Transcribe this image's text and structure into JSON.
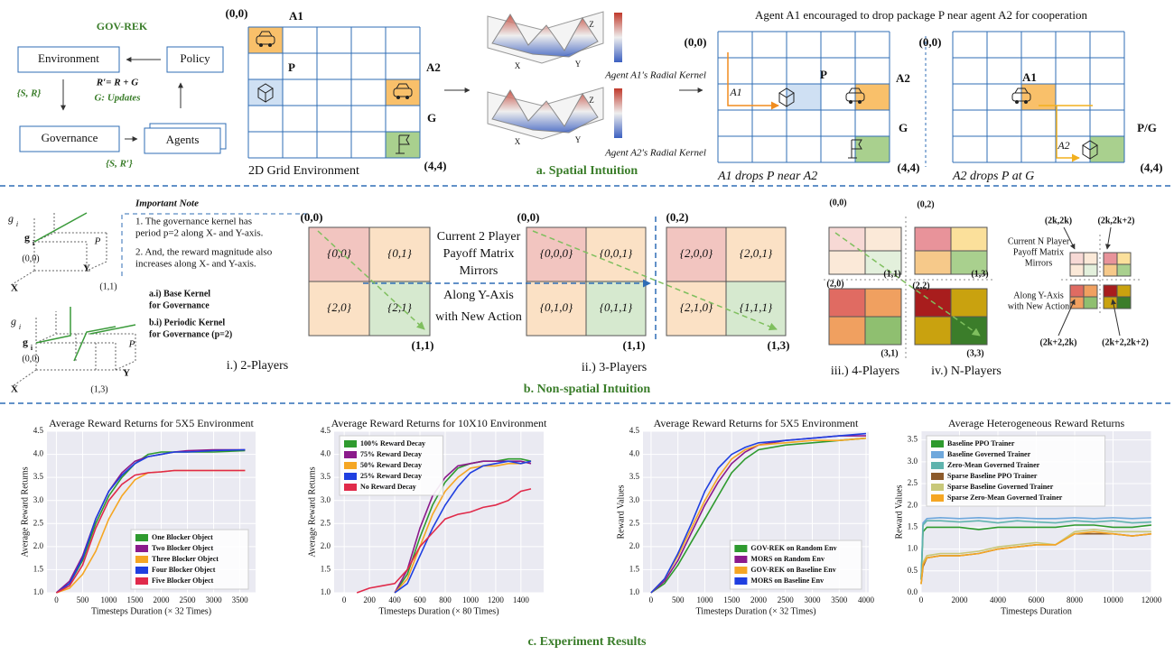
{
  "gov_rek": {
    "title": "GOV-REK",
    "environment": "Environment",
    "policy": "Policy",
    "governance": "Governance",
    "agents": "Agents",
    "state_reward": "{S, R}",
    "reward_formula": "R′= R + G",
    "updates": "G: Updates",
    "state_reward_prime": "{S, R′}"
  },
  "grid_env": {
    "origin": "(0,0)",
    "a1": "A1",
    "p": "P",
    "a2": "A2",
    "g": "G",
    "corner": "(4,4)",
    "caption": "2D Grid Environment"
  },
  "kernels": {
    "a1_label": "Agent A1's Radial Kernel",
    "a2_label": "Agent A2's Radial Kernel",
    "axis_z": "Z",
    "axis_x": "X",
    "axis_y": "Y"
  },
  "spatial": {
    "heading": "Agent A1 encouraged to drop package P near agent A2 for cooperation",
    "grid1": {
      "origin": "(0,0)",
      "path_label": "A1",
      "p": "P",
      "a2": "A2",
      "g": "G",
      "corner": "(4,4)",
      "caption": "A1 drops P near A2"
    },
    "grid2": {
      "origin": "(0,0)",
      "a1": "A1",
      "pg": "P/G",
      "path_label": "A2",
      "corner": "(4,4)",
      "caption": "A2 drops P at G"
    },
    "caption": "a. Spatial Intuition"
  },
  "non_spatial": {
    "kernel_labels": {
      "g": "g",
      "i": "i",
      "p": "P",
      "origin": "(0,0)",
      "x": "X",
      "y": "Y",
      "end1": "(1,1)",
      "end2": "(1,3)"
    },
    "note_title": "Important Note",
    "note_1": [
      "1. The governance kernel has",
      "period p=2 along X- and Y-axis."
    ],
    "note_2": [
      "2. And, the reward magnitude also",
      "increases along X- and Y-axis."
    ],
    "base_kernel": [
      "a.i) Base Kernel",
      "for Governance"
    ],
    "periodic_kernel": [
      "b.i) Periodic Kernel",
      "for Governance (p=2)"
    ],
    "two_players": {
      "cells": [
        "{0,0}",
        "{0,1}",
        "{2,0}",
        "{2,1}"
      ],
      "start": "(0,0)",
      "end": "(1,1)",
      "caption": "i.) 2-Players"
    },
    "mirror_text": [
      "Current 2 Player",
      "Payoff Matrix",
      "Mirrors"
    ],
    "along_text": [
      "Along Y-Axis",
      "with New Action"
    ],
    "three_players": {
      "left_cells": [
        "{0,0,0}",
        "{0,0,1}",
        "{0,1,0}",
        "{0,1,1}"
      ],
      "right_cells": [
        "{2,0,0}",
        "{2,0,1}",
        "{2,1,0}",
        "{1,1,1}"
      ],
      "labels": [
        "(0,0)",
        "(1,1)",
        "(0,2)",
        "(1,3)"
      ],
      "caption": "ii.) 3-Players"
    },
    "four_players": {
      "labels": [
        "(0,0)",
        "(0,2)",
        "(1,1)",
        "(1,3)",
        "(2,0)",
        "(2,2)",
        "(3,1)",
        "(3,3)"
      ],
      "caption": "iii.) 4-Players"
    },
    "n_players": {
      "labels": [
        "(2k,2k)",
        "(2k,2k+2)",
        "(2k+2,2k)",
        "(2k+2,2k+2)"
      ],
      "mirror_text": [
        "Current N Player",
        "Payoff Matrix",
        "Mirrors"
      ],
      "along_text": [
        "Along Y-Axis",
        "with New Action"
      ],
      "caption": "iv.) N-Players"
    },
    "caption": "b. Non-spatial Intuition"
  },
  "experiments_caption": "c. Experiment Results",
  "chart_data": [
    {
      "type": "line",
      "title": "Average Reward Returns for 5X5 Environment",
      "x_label": "Timesteps Duration (× 32 Times)",
      "y_label": "Average Reward Returns",
      "legend": "lower right",
      "grid": true,
      "xlim": [
        -180,
        3800
      ],
      "xticks": [
        0,
        500,
        1000,
        1500,
        2000,
        2500,
        3000,
        3500
      ],
      "ylim": [
        1.0,
        4.5
      ],
      "yticks": [
        {
          "value": 1.0,
          "label": "1.0"
        },
        {
          "value": 1.5,
          "label": "1.5"
        },
        {
          "value": 2.0,
          "label": "2.0"
        },
        {
          "value": 2.5,
          "label": "2.5"
        },
        {
          "value": 3.0,
          "label": "3.0"
        },
        {
          "value": 3.5,
          "label": "3.5"
        },
        {
          "value": 4.0,
          "label": "4.0"
        },
        {
          "value": 4.5,
          "label": "4.5"
        }
      ],
      "x": [
        0,
        250,
        500,
        750,
        1000,
        1250,
        1500,
        1750,
        2000,
        2250,
        2500,
        3000,
        3600
      ],
      "series": [
        {
          "name": "One Blocker Object",
          "color": "#2e9a2e",
          "values": [
            1.0,
            1.2,
            1.7,
            2.5,
            3.1,
            3.5,
            3.8,
            4.0,
            4.05,
            4.05,
            4.05,
            4.05,
            4.08
          ]
        },
        {
          "name": "Two Blocker Object",
          "color": "#8b1a8b",
          "values": [
            1.0,
            1.25,
            1.8,
            2.6,
            3.2,
            3.6,
            3.85,
            3.95,
            4.0,
            4.05,
            4.08,
            4.1,
            4.1
          ]
        },
        {
          "name": "Three Blocker Object",
          "color": "#f5a623",
          "values": [
            1.0,
            1.1,
            1.4,
            1.9,
            2.6,
            3.1,
            3.45,
            3.6,
            3.62,
            3.65,
            3.65,
            3.65,
            3.65
          ]
        },
        {
          "name": "Four Blocker Object",
          "color": "#1f3fe0",
          "values": [
            1.0,
            1.2,
            1.75,
            2.6,
            3.2,
            3.55,
            3.8,
            3.95,
            4.0,
            4.05,
            4.05,
            4.08,
            4.1
          ]
        },
        {
          "name": "Five Blocker Object",
          "color": "#e02a4a",
          "values": [
            1.0,
            1.15,
            1.6,
            2.4,
            3.0,
            3.35,
            3.55,
            3.6,
            3.62,
            3.65,
            3.65,
            3.65,
            3.65
          ]
        }
      ]
    },
    {
      "type": "line",
      "title": "Average Reward Returns for 10X10 Environment",
      "x_label": "Timesteps Duration (× 80 Times)",
      "y_label": "Average Reward Returns",
      "legend": "upper left",
      "grid": true,
      "xlim": [
        -80,
        1580
      ],
      "xticks": [
        0,
        200,
        400,
        600,
        800,
        1000,
        1200,
        1400
      ],
      "ylim": [
        1.0,
        4.5
      ],
      "yticks": [
        {
          "value": 1.0,
          "label": "1.0"
        },
        {
          "value": 1.5,
          "label": "1.5"
        },
        {
          "value": 2.0,
          "label": "2.0"
        },
        {
          "value": 2.5,
          "label": "2.5"
        },
        {
          "value": 3.0,
          "label": "3.0"
        },
        {
          "value": 3.5,
          "label": "3.5"
        },
        {
          "value": 4.0,
          "label": "4.0"
        },
        {
          "value": 4.5,
          "label": "4.5"
        }
      ],
      "x": [
        100,
        200,
        300,
        400,
        500,
        600,
        700,
        800,
        900,
        1000,
        1100,
        1200,
        1300,
        1400,
        1480
      ],
      "series": [
        {
          "name": "100% Reward Decay",
          "color": "#2e9a2e",
          "values": [
            null,
            null,
            null,
            1.0,
            1.4,
            2.2,
            2.9,
            3.4,
            3.7,
            3.8,
            3.85,
            3.85,
            3.9,
            3.9,
            3.85
          ]
        },
        {
          "name": "75% Reward Decay",
          "color": "#8b1a8b",
          "values": [
            null,
            null,
            null,
            1.0,
            1.5,
            2.4,
            3.1,
            3.5,
            3.75,
            3.8,
            3.85,
            3.85,
            3.85,
            3.85,
            3.8
          ]
        },
        {
          "name": "50% Reward Decay",
          "color": "#f5a623",
          "values": [
            null,
            null,
            null,
            1.0,
            1.3,
            2.0,
            2.7,
            3.2,
            3.5,
            3.7,
            3.75,
            3.75,
            3.8,
            3.8,
            3.85
          ]
        },
        {
          "name": "25% Reward Decay",
          "color": "#1f3fe0",
          "values": [
            null,
            null,
            null,
            1.0,
            1.2,
            1.8,
            2.4,
            2.9,
            3.3,
            3.6,
            3.75,
            3.8,
            3.85,
            3.8,
            3.85
          ]
        },
        {
          "name": "No Reward Decay",
          "color": "#e02a4a",
          "values": [
            1.0,
            1.1,
            1.15,
            1.2,
            1.5,
            2.0,
            2.3,
            2.6,
            2.7,
            2.75,
            2.85,
            2.9,
            3.0,
            3.2,
            3.25
          ]
        }
      ]
    },
    {
      "type": "line",
      "title": "Average Reward Returns for 5X5 Environment",
      "x_label": "Timesteps Duration (× 32 Times)",
      "y_label": "Reward Values",
      "legend": "lower right",
      "grid": true,
      "xlim": [
        -150,
        4050
      ],
      "xticks": [
        0,
        500,
        1000,
        1500,
        2000,
        2500,
        3000,
        3500,
        4000
      ],
      "ylim": [
        1.0,
        4.5
      ],
      "yticks": [
        {
          "value": 1.0,
          "label": "1.0"
        },
        {
          "value": 1.5,
          "label": "1.5"
        },
        {
          "value": 2.0,
          "label": "2.0"
        },
        {
          "value": 2.5,
          "label": "2.5"
        },
        {
          "value": 3.0,
          "label": "3.0"
        },
        {
          "value": 3.5,
          "label": "3.5"
        },
        {
          "value": 4.0,
          "label": "4.0"
        },
        {
          "value": 4.5,
          "label": "4.5"
        }
      ],
      "x": [
        0,
        250,
        500,
        750,
        1000,
        1250,
        1500,
        1750,
        2000,
        2500,
        3000,
        3500,
        4000
      ],
      "series": [
        {
          "name": "GOV-REK on Random Env",
          "color": "#2e9a2e",
          "values": [
            1.0,
            1.2,
            1.6,
            2.1,
            2.6,
            3.1,
            3.6,
            3.9,
            4.1,
            4.2,
            4.25,
            4.3,
            4.35
          ]
        },
        {
          "name": "MORS on Random Env",
          "color": "#8b1a8b",
          "values": [
            1.0,
            1.25,
            1.7,
            2.3,
            2.9,
            3.4,
            3.8,
            4.05,
            4.2,
            4.3,
            4.35,
            4.4,
            4.4
          ]
        },
        {
          "name": "GOV-REK on Baseline Env",
          "color": "#f5a623",
          "values": [
            1.0,
            1.3,
            1.8,
            2.4,
            3.0,
            3.5,
            3.9,
            4.1,
            4.2,
            4.25,
            4.3,
            4.3,
            4.35
          ]
        },
        {
          "name": "MORS on Baseline Env",
          "color": "#1f3fe0",
          "values": [
            1.0,
            1.3,
            1.85,
            2.5,
            3.2,
            3.7,
            4.0,
            4.15,
            4.25,
            4.3,
            4.35,
            4.4,
            4.45
          ]
        }
      ]
    },
    {
      "type": "line",
      "title": "Average Heterogeneous Reward Returns",
      "x_label": "Timesteps Duration",
      "y_label": "Reward Values",
      "legend": "upper left",
      "grid": true,
      "xlim": [
        0,
        12000
      ],
      "xticks": [
        0,
        2000,
        4000,
        6000,
        8000,
        10000,
        12000
      ],
      "ylim": [
        0,
        3.7
      ],
      "yticks": [
        {
          "value": 0,
          "label": "0.0"
        },
        {
          "value": 0.5,
          "label": "0.5"
        },
        {
          "value": 1.0,
          "label": "1.0"
        },
        {
          "value": 1.5,
          "label": "1.5"
        },
        {
          "value": 2.0,
          "label": "2.0"
        },
        {
          "value": 2.5,
          "label": "2.5"
        },
        {
          "value": 3.0,
          "label": "3.0"
        },
        {
          "value": 3.5,
          "label": "3.5"
        }
      ],
      "x": [
        0,
        100,
        300,
        1000,
        2000,
        3000,
        4000,
        5000,
        6000,
        7000,
        8000,
        9000,
        10000,
        11000,
        12000
      ],
      "series": [
        {
          "name": "Baseline PPO Trainer",
          "color": "#2e9a2e",
          "values": [
            0.3,
            1.4,
            1.5,
            1.5,
            1.5,
            1.45,
            1.5,
            1.5,
            1.5,
            1.5,
            1.55,
            1.55,
            1.5,
            1.5,
            1.55
          ]
        },
        {
          "name": "Baseline Governed Trainer",
          "color": "#6fa8dc",
          "values": [
            0.3,
            1.6,
            1.7,
            1.72,
            1.7,
            1.72,
            1.7,
            1.72,
            1.7,
            1.7,
            1.72,
            1.7,
            1.72,
            1.7,
            1.72
          ]
        },
        {
          "name": "Zero-Mean Governed Trainer",
          "color": "#5fb3ad",
          "values": [
            0.3,
            1.55,
            1.65,
            1.65,
            1.62,
            1.65,
            1.6,
            1.65,
            1.62,
            1.6,
            1.65,
            1.62,
            1.65,
            1.6,
            1.62
          ]
        },
        {
          "name": "Sparse Baseline PPO Trainer",
          "color": "#8c5a2b",
          "values": [
            0.2,
            0.6,
            0.8,
            0.85,
            0.85,
            0.9,
            1.0,
            1.05,
            1.1,
            1.1,
            1.35,
            1.35,
            1.35,
            1.3,
            1.35
          ]
        },
        {
          "name": "Sparse Baseline Governed Trainer",
          "color": "#c8c87a",
          "values": [
            0.2,
            0.7,
            0.85,
            0.9,
            0.9,
            0.95,
            1.05,
            1.1,
            1.15,
            1.1,
            1.4,
            1.45,
            1.4,
            1.4,
            1.4
          ]
        },
        {
          "name": "Sparse Zero-Mean Governed Trainer",
          "color": "#f5a623",
          "values": [
            0.2,
            0.65,
            0.8,
            0.85,
            0.85,
            0.9,
            1.0,
            1.05,
            1.1,
            1.1,
            1.35,
            1.4,
            1.35,
            1.3,
            1.35
          ]
        }
      ]
    }
  ]
}
